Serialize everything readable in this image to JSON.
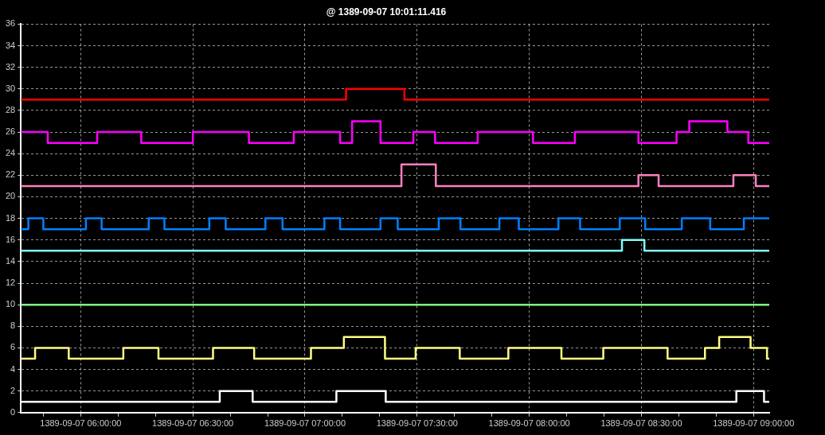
{
  "chart_data": {
    "type": "step",
    "title": "@ 1389-09-07 10:01:11.416",
    "xlim": [
      "1389-09-07T05:44:00",
      "1389-09-07T09:04:12"
    ],
    "xticks": [
      {
        "value": "1389-09-07T05:50:00",
        "label": null
      },
      {
        "value": "1389-09-07T06:00:00",
        "label": "1389-09-07 06:00:00"
      },
      {
        "value": "1389-09-07T06:10:00",
        "label": null
      },
      {
        "value": "1389-09-07T06:20:00",
        "label": null
      },
      {
        "value": "1389-09-07T06:30:00",
        "label": "1389-09-07 06:30:00"
      },
      {
        "value": "1389-09-07T06:40:00",
        "label": null
      },
      {
        "value": "1389-09-07T06:50:00",
        "label": null
      },
      {
        "value": "1389-09-07T07:00:00",
        "label": "1389-09-07 07:00:00"
      },
      {
        "value": "1389-09-07T07:10:00",
        "label": null
      },
      {
        "value": "1389-09-07T07:20:00",
        "label": null
      },
      {
        "value": "1389-09-07T07:30:00",
        "label": "1389-09-07 07:30:00"
      },
      {
        "value": "1389-09-07T07:40:00",
        "label": null
      },
      {
        "value": "1389-09-07T07:50:00",
        "label": null
      },
      {
        "value": "1389-09-07T08:00:00",
        "label": "1389-09-07 08:00:00"
      },
      {
        "value": "1389-09-07T08:10:00",
        "label": null
      },
      {
        "value": "1389-09-07T08:20:00",
        "label": null
      },
      {
        "value": "1389-09-07T08:30:00",
        "label": "1389-09-07 08:30:00"
      },
      {
        "value": "1389-09-07T08:40:00",
        "label": null
      },
      {
        "value": "1389-09-07T08:50:00",
        "label": null
      },
      {
        "value": "1389-09-07T09:00:00",
        "label": "1389-09-07 09:00:00"
      }
    ],
    "ylim": [
      0,
      36
    ],
    "yticks": [
      0,
      2,
      4,
      6,
      8,
      10,
      12,
      14,
      16,
      18,
      20,
      22,
      24,
      26,
      28,
      30,
      32,
      34,
      36
    ],
    "grid": true,
    "series": [
      {
        "color": "#ff0000",
        "x": [
          "1389-09-07T05:44:00",
          "1389-09-07T07:11:00",
          "1389-09-07T07:26:36",
          "1389-09-07T09:04:12"
        ],
        "values": [
          29,
          30,
          29,
          29
        ]
      },
      {
        "color": "#ff00ff",
        "x": [
          "1389-09-07T05:44:00",
          "1389-09-07T05:51:12",
          "1389-09-07T06:04:24",
          "1389-09-07T06:16:12",
          "1389-09-07T06:30:00",
          "1389-09-07T06:45:00",
          "1389-09-07T06:57:00",
          "1389-09-07T07:09:24",
          "1389-09-07T07:12:36",
          "1389-09-07T07:20:12",
          "1389-09-07T07:29:00",
          "1389-09-07T07:34:48",
          "1389-09-07T07:46:12",
          "1389-09-07T08:01:00",
          "1389-09-07T08:12:12",
          "1389-09-07T08:29:12",
          "1389-09-07T08:39:24",
          "1389-09-07T08:42:48",
          "1389-09-07T08:53:00",
          "1389-09-07T08:58:36",
          "1389-09-07T09:04:12"
        ],
        "values": [
          26,
          25,
          26,
          25,
          26,
          25,
          26,
          25,
          27,
          25,
          26,
          25,
          26,
          25,
          26,
          25,
          26,
          27,
          26,
          25,
          25
        ]
      },
      {
        "color": "#ff80c0",
        "x": [
          "1389-09-07T05:44:00",
          "1389-09-07T07:25:48",
          "1389-09-07T07:35:00",
          "1389-09-07T08:29:12",
          "1389-09-07T08:34:36",
          "1389-09-07T08:54:36",
          "1389-09-07T09:00:36",
          "1389-09-07T09:04:12"
        ],
        "values": [
          21,
          23,
          21,
          22,
          21,
          22,
          21,
          21
        ]
      },
      {
        "color": "#0080ff",
        "x": [
          "1389-09-07T05:44:00",
          "1389-09-07T05:46:00",
          "1389-09-07T05:50:00",
          "1389-09-07T06:01:24",
          "1389-09-07T06:05:36",
          "1389-09-07T06:18:12",
          "1389-09-07T06:22:24",
          "1389-09-07T06:34:24",
          "1389-09-07T06:38:48",
          "1389-09-07T06:49:24",
          "1389-09-07T06:54:00",
          "1389-09-07T07:05:12",
          "1389-09-07T07:09:24",
          "1389-09-07T07:20:12",
          "1389-09-07T07:24:48",
          "1389-09-07T07:35:48",
          "1389-09-07T07:41:36",
          "1389-09-07T07:52:00",
          "1389-09-07T07:57:12",
          "1389-09-07T08:07:48",
          "1389-09-07T08:13:36",
          "1389-09-07T08:24:12",
          "1389-09-07T08:31:00",
          "1389-09-07T08:40:48",
          "1389-09-07T08:48:24",
          "1389-09-07T08:57:24",
          "1389-09-07T09:04:12"
        ],
        "values": [
          17,
          18,
          17,
          18,
          17,
          18,
          17,
          18,
          17,
          18,
          17,
          18,
          17,
          18,
          17,
          18,
          17,
          18,
          17,
          18,
          17,
          18,
          17,
          18,
          17,
          18,
          18
        ]
      },
      {
        "color": "#80ffff",
        "x": [
          "1389-09-07T05:44:00",
          "1389-09-07T08:24:48",
          "1389-09-07T08:30:48",
          "1389-09-07T09:04:12"
        ],
        "values": [
          15,
          16,
          15,
          15
        ]
      },
      {
        "color": "#80ff80",
        "x": [
          "1389-09-07T05:44:00",
          "1389-09-07T09:04:12"
        ],
        "values": [
          10,
          10
        ]
      },
      {
        "color": "#ffff80",
        "x": [
          "1389-09-07T05:44:00",
          "1389-09-07T05:47:48",
          "1389-09-07T05:56:48",
          "1389-09-07T06:11:24",
          "1389-09-07T06:20:48",
          "1389-09-07T06:35:24",
          "1389-09-07T06:46:24",
          "1389-09-07T07:01:36",
          "1389-09-07T07:10:24",
          "1389-09-07T07:21:24",
          "1389-09-07T07:29:36",
          "1389-09-07T07:41:24",
          "1389-09-07T07:54:24",
          "1389-09-07T08:08:36",
          "1389-09-07T08:19:48",
          "1389-09-07T08:37:00",
          "1389-09-07T08:47:00",
          "1389-09-07T08:50:48",
          "1389-09-07T08:59:12",
          "1389-09-07T09:03:36",
          "1389-09-07T09:04:12"
        ],
        "values": [
          5,
          6,
          5,
          6,
          5,
          6,
          5,
          6,
          7,
          5,
          6,
          5,
          6,
          5,
          6,
          5,
          6,
          7,
          6,
          5,
          5
        ]
      },
      {
        "color": "#ffffff",
        "x": [
          "1389-09-07T05:44:00",
          "1389-09-07T06:37:12",
          "1389-09-07T06:46:00",
          "1389-09-07T07:08:24",
          "1389-09-07T07:21:36",
          "1389-09-07T08:55:24",
          "1389-09-07T09:02:48",
          "1389-09-07T09:04:12"
        ],
        "values": [
          1,
          2,
          1,
          2,
          1,
          2,
          1,
          1
        ]
      }
    ]
  }
}
